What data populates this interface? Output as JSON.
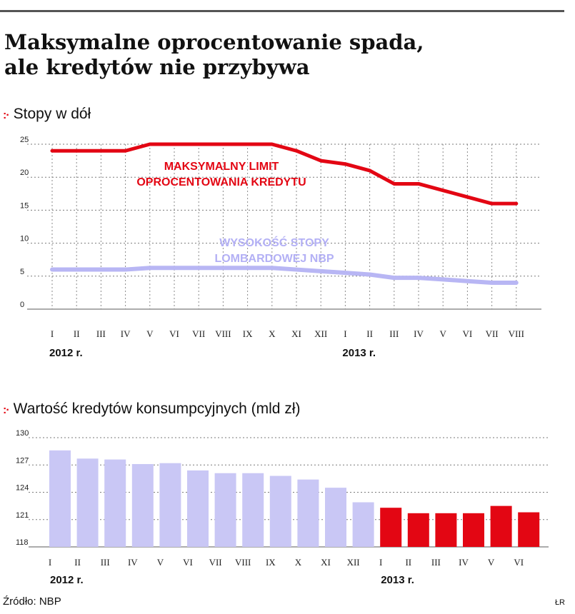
{
  "header": {
    "title_line1": "Maksymalne oprocentowanie spada,",
    "title_line2": "ale kredytów nie przybywa"
  },
  "colors": {
    "red": "#e30613",
    "lavender": "#b8b6f4",
    "grid": "#888888"
  },
  "chart_data": [
    {
      "type": "line",
      "title": "Stopy w dół",
      "categories": [
        "I",
        "II",
        "III",
        "IV",
        "V",
        "VI",
        "VII",
        "VIII",
        "IX",
        "X",
        "XI",
        "XII",
        "I",
        "II",
        "III",
        "IV",
        "V",
        "VI",
        "VII",
        "VIII"
      ],
      "year_labels": [
        {
          "label": "2012 r.",
          "index": 0
        },
        {
          "label": "2013 r.",
          "index": 12
        }
      ],
      "ylim": [
        0,
        25
      ],
      "yticks": [
        0,
        5,
        10,
        15,
        20,
        25
      ],
      "grid": true,
      "series": [
        {
          "name": "MAKSYMALNY LIMIT OPROCENTOWANIA KREDYTU",
          "name_lines": [
            "MAKSYMALNY LIMIT",
            "OPROCENTOWANIA KREDYTU"
          ],
          "color": "#e30613",
          "values": [
            24,
            24,
            24,
            24,
            25,
            25,
            25,
            25,
            25,
            25,
            24,
            22.5,
            22,
            21,
            19,
            19,
            18,
            17,
            16,
            16
          ]
        },
        {
          "name": "WYSOKOŚĆ STOPY LOMBARDOWEJ NBP",
          "name_lines": [
            "WYSOKOŚĆ STOPY",
            "LOMBARDOWEJ NBP"
          ],
          "color": "#b8b6f4",
          "values": [
            6,
            6,
            6,
            6,
            6.25,
            6.25,
            6.25,
            6.25,
            6.25,
            6.25,
            6,
            5.75,
            5.5,
            5.25,
            4.75,
            4.75,
            4.5,
            4.25,
            4,
            4
          ]
        }
      ]
    },
    {
      "type": "bar",
      "title": "Wartość kredytów konsumpcyjnych (mld zł)",
      "categories": [
        "I",
        "II",
        "III",
        "IV",
        "V",
        "VI",
        "VII",
        "VIII",
        "IX",
        "X",
        "XI",
        "XII",
        "I",
        "II",
        "III",
        "IV",
        "V",
        "VI"
      ],
      "year_labels": [
        {
          "label": "2012 r.",
          "index": 0
        },
        {
          "label": "2013 r.",
          "index": 12
        }
      ],
      "ylim": [
        118,
        130
      ],
      "yticks": [
        118,
        121,
        124,
        127,
        130
      ],
      "grid": true,
      "values": [
        128.6,
        127.7,
        127.6,
        127.1,
        127.2,
        126.4,
        126.1,
        126.1,
        125.8,
        125.4,
        124.5,
        122.9,
        122.3,
        121.7,
        121.7,
        121.7,
        122.5,
        121.8
      ],
      "bar_colors": [
        "#c9c7f5",
        "#c9c7f5",
        "#c9c7f5",
        "#c9c7f5",
        "#c9c7f5",
        "#c9c7f5",
        "#c9c7f5",
        "#c9c7f5",
        "#c9c7f5",
        "#c9c7f5",
        "#c9c7f5",
        "#c9c7f5",
        "#e30613",
        "#e30613",
        "#e30613",
        "#e30613",
        "#e30613",
        "#e30613"
      ]
    }
  ],
  "footer": {
    "source": "Źródło: NBP",
    "author": "ŁR"
  }
}
